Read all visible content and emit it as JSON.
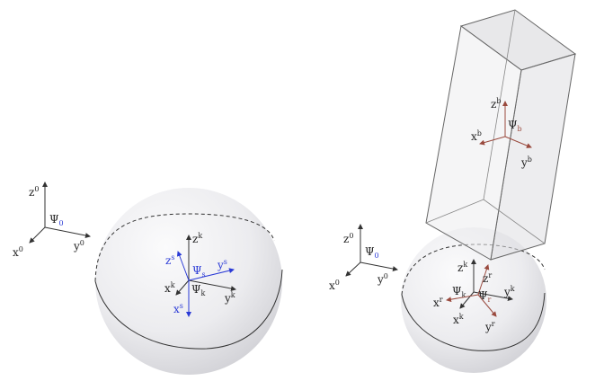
{
  "colors": {
    "black": "#333333",
    "blue": "#2a3ad6",
    "red": "#9a4a3e",
    "sphere_light": "#f4f4f6",
    "sphere_dark": "#d4d4d8"
  },
  "left": {
    "world_frame": {
      "psi": "Ψ",
      "psi_sub": "0",
      "x": "x",
      "x_sup": "0",
      "y": "y",
      "y_sup": "0",
      "z": "z",
      "z_sup": "0"
    },
    "sphere_frame_s": {
      "psi": "Ψ",
      "psi_sub": "s",
      "x": "x",
      "x_sup": "s",
      "y": "y",
      "y_sup": "s",
      "z": "z",
      "z_sup": "s"
    },
    "sphere_frame_k": {
      "psi": "Ψ",
      "psi_sub": "k",
      "x": "x",
      "x_sup": "k",
      "y": "y",
      "y_sup": "k",
      "z": "z",
      "z_sup": "k"
    }
  },
  "right": {
    "world_frame": {
      "psi": "Ψ",
      "psi_sub": "0",
      "x": "x",
      "x_sup": "0",
      "y": "y",
      "y_sup": "0",
      "z": "z",
      "z_sup": "0"
    },
    "body_frame_b": {
      "psi": "Ψ",
      "psi_sub": "b",
      "x": "x",
      "x_sup": "b",
      "y": "y",
      "y_sup": "b",
      "z": "z",
      "z_sup": "b"
    },
    "contact_frame_r": {
      "psi": "Ψ",
      "psi_sub": "r",
      "x": "x",
      "x_sup": "r",
      "y": "y",
      "y_sup": "r",
      "z": "z",
      "z_sup": "r"
    },
    "sphere_frame_k": {
      "psi": "Ψ",
      "psi_sub": "k",
      "x": "x",
      "x_sup": "k",
      "y": "y",
      "y_sup": "k",
      "z": "z",
      "z_sup": "k"
    }
  }
}
